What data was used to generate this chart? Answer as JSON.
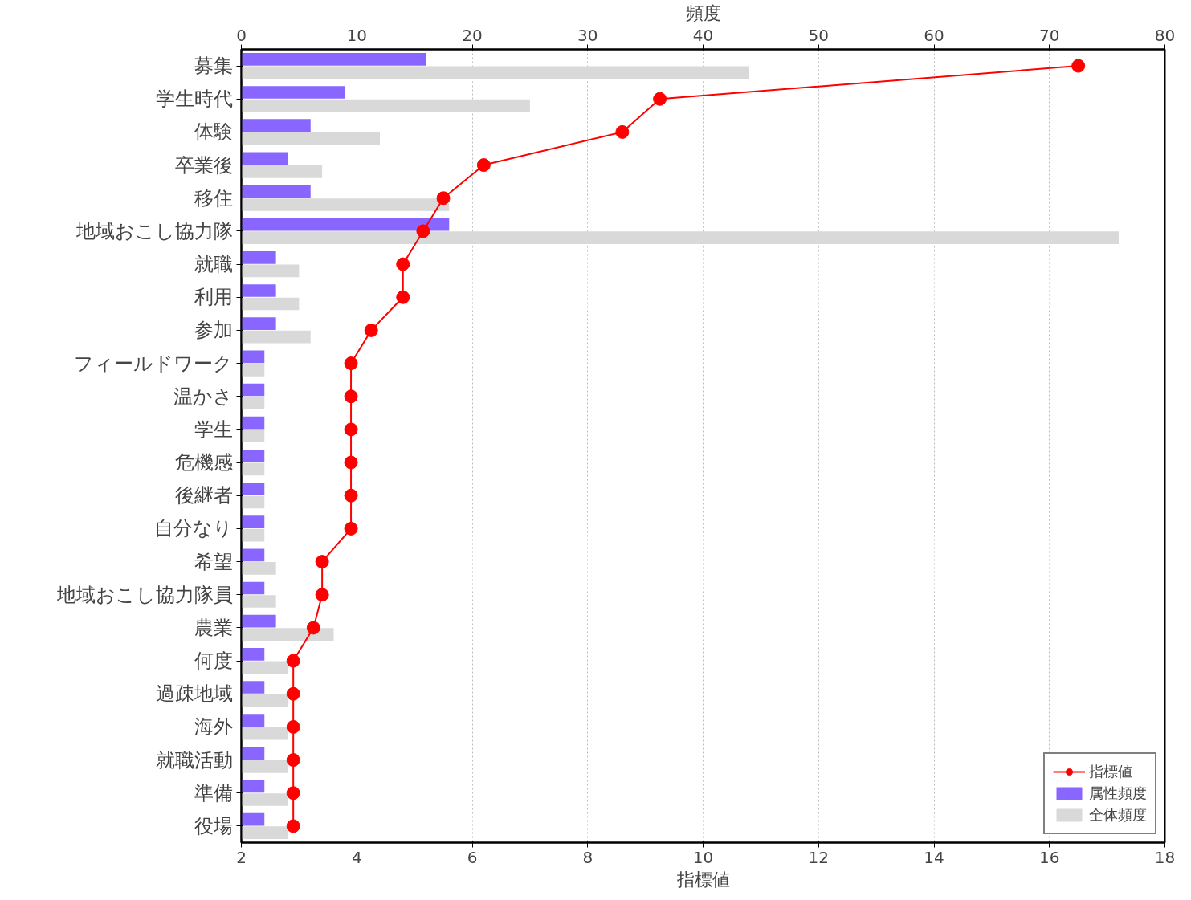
{
  "chart_data": {
    "type": "bar",
    "orientation": "horizontal",
    "categories": [
      "募集",
      "学生時代",
      "体験",
      "卒業後",
      "移住",
      "地域おこし協力隊",
      "就職",
      "利用",
      "参加",
      "フィールドワーク",
      "温かさ",
      "学生",
      "危機感",
      "後継者",
      "自分なり",
      "希望",
      "地域おこし協力隊員",
      "農業",
      "何度",
      "過疎地域",
      "海外",
      "就職活動",
      "準備",
      "役場"
    ],
    "series": [
      {
        "name": "属性頻度",
        "color": "#8866ff",
        "axis": "x2",
        "values": [
          16,
          9,
          6,
          4,
          6,
          18,
          3,
          3,
          3,
          2,
          2,
          2,
          2,
          2,
          2,
          2,
          2,
          3,
          2,
          2,
          2,
          2,
          2,
          2
        ]
      },
      {
        "name": "全体頻度",
        "color": "#d9d9d9",
        "axis": "x2",
        "values": [
          44,
          25,
          12,
          7,
          18,
          76,
          5,
          5,
          6,
          2,
          2,
          2,
          2,
          2,
          2,
          3,
          3,
          8,
          4,
          4,
          4,
          4,
          4,
          4
        ]
      },
      {
        "name": "指標値",
        "color": "#ff0000",
        "type": "line",
        "values": [
          16.5,
          9.25,
          8.6,
          6.2,
          5.5,
          5.15,
          4.8,
          4.8,
          4.25,
          3.9,
          3.9,
          3.9,
          3.9,
          3.9,
          3.9,
          3.4,
          3.4,
          3.25,
          2.9,
          2.9,
          2.9,
          2.9,
          2.9,
          2.9
        ]
      }
    ],
    "xlim": [
      2,
      18
    ],
    "xticks": [
      2,
      4,
      6,
      8,
      10,
      12,
      14,
      16,
      18
    ],
    "xlabel": "指標値",
    "x2lim": [
      0,
      80
    ],
    "x2ticks": [
      0,
      10,
      20,
      30,
      40,
      50,
      60,
      70,
      80
    ],
    "x2label": "頻度",
    "grid": "x",
    "legend": "bottom right",
    "marker": "circle",
    "line_style": "solid"
  }
}
